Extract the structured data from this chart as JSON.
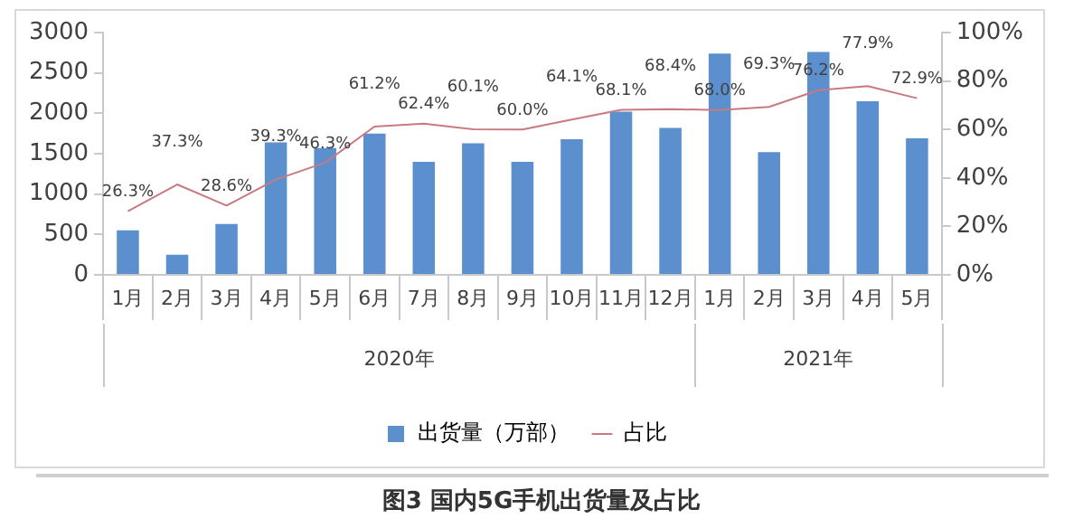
{
  "chart_data": {
    "type": "bar",
    "title": "图3  国内5G手机出货量及占比",
    "categories": [
      "1月",
      "2月",
      "3月",
      "4月",
      "5月",
      "6月",
      "7月",
      "8月",
      "9月",
      "10月",
      "11月",
      "12月",
      "1月",
      "2月",
      "3月",
      "4月",
      "5月"
    ],
    "series": [
      {
        "name": "出货量（万部）",
        "color": "#5b8fce",
        "values": [
          550,
          250,
          630,
          1640,
          1570,
          1750,
          1400,
          1630,
          1400,
          1680,
          2020,
          1820,
          2740,
          1520,
          2760,
          2150,
          1690
        ]
      },
      {
        "name": "占比",
        "type": "line",
        "axis": "y2",
        "color": "#c77a80",
        "values": [
          26.3,
          37.3,
          28.6,
          39.3,
          46.3,
          61.2,
          62.4,
          60.1,
          60.0,
          64.1,
          68.1,
          68.4,
          68.0,
          69.3,
          76.2,
          77.9,
          72.9
        ],
        "value_labels": [
          "26.3%",
          "37.3%",
          "28.6%",
          "39.3%",
          "46.3%",
          "61.2%",
          "62.4%",
          "60.1%",
          "60.0%",
          "64.1%",
          "68.1%",
          "68.4%",
          "68.0%",
          "69.3%",
          "76.2%",
          "77.9%",
          "72.9%"
        ]
      }
    ],
    "ylim": [
      0,
      3000
    ],
    "yticks": [
      0,
      500,
      1000,
      1500,
      2000,
      2500,
      3000
    ],
    "y2lim": [
      0,
      100
    ],
    "y2ticks": [
      {
        "value": 0,
        "label": "0%"
      },
      {
        "value": 20,
        "label": "20%"
      },
      {
        "value": 40,
        "label": "40%"
      },
      {
        "value": 60,
        "label": "60%"
      },
      {
        "value": 80,
        "label": "80%"
      },
      {
        "value": 100,
        "label": "100%"
      }
    ],
    "annotations": [
      "2020年",
      "2021年"
    ],
    "grid": false,
    "legend": "bottom",
    "marker": "none",
    "line_style": "solid"
  }
}
